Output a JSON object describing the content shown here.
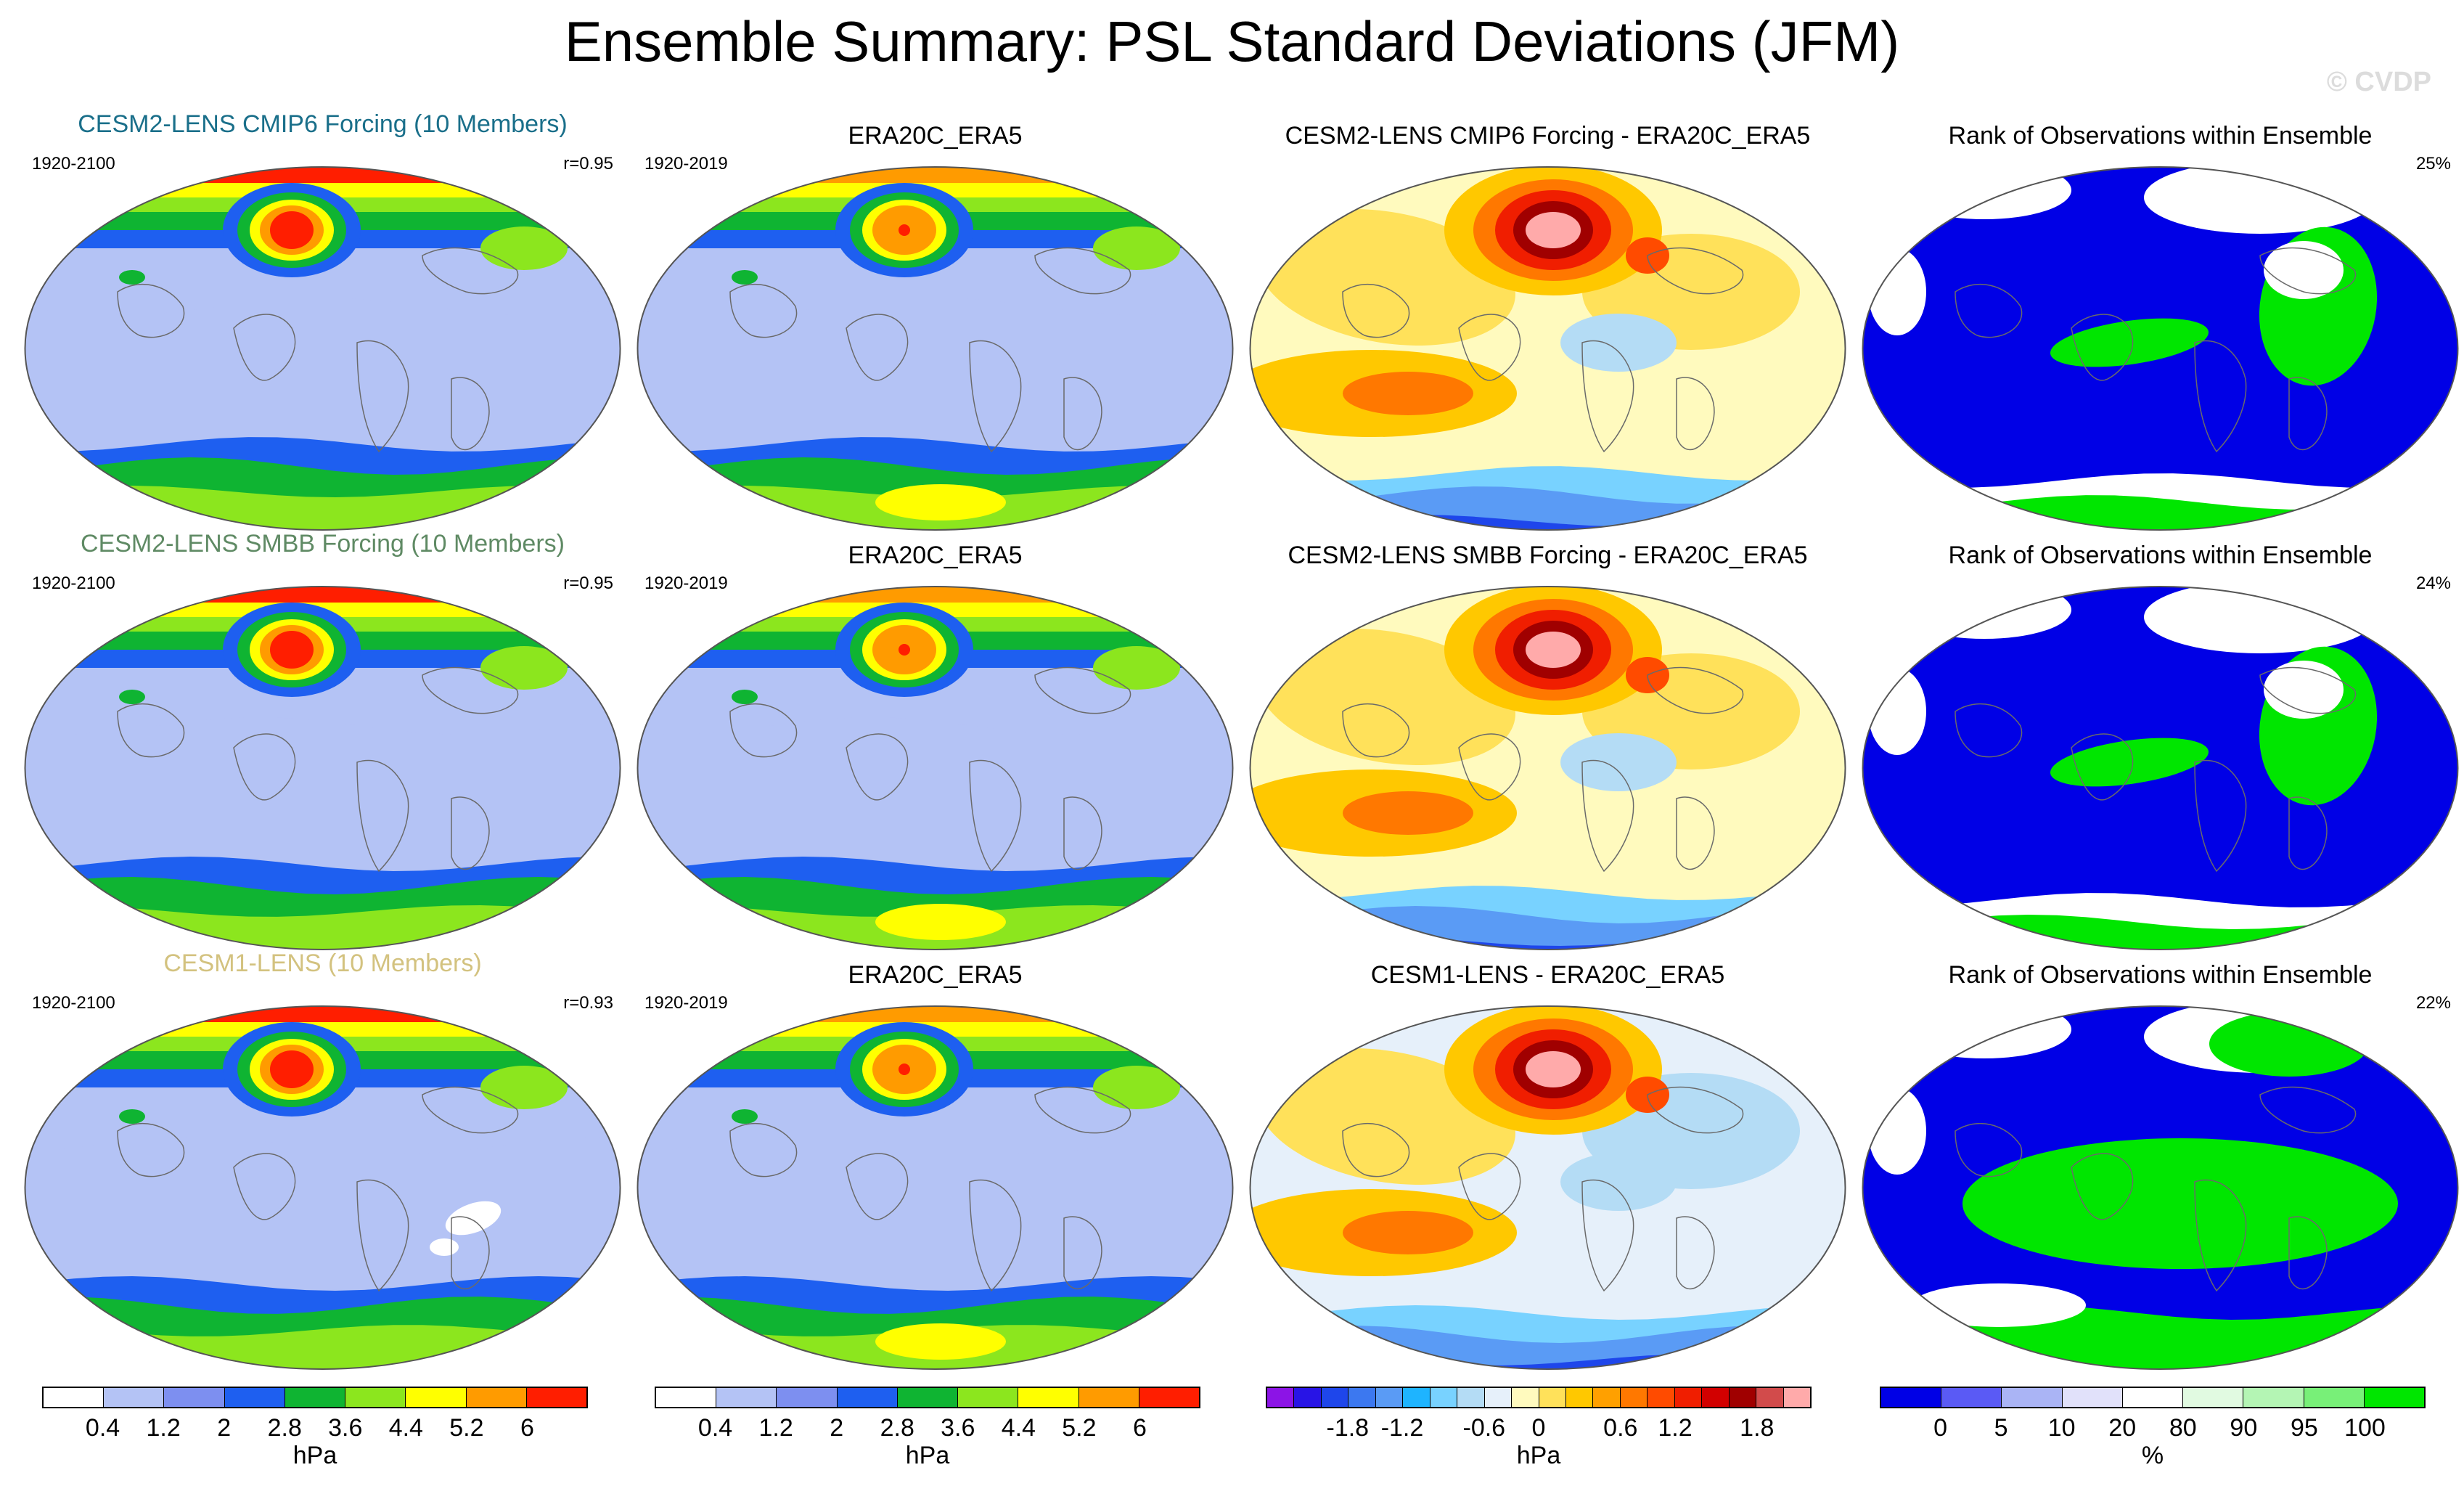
{
  "title": "Ensemble Summary: PSL Standard Deviations (JFM)",
  "watermark": "© CVDP",
  "rows": [
    {
      "model": {
        "title": "CESM2-LENS CMIP6 Forcing (10 Members)",
        "title_color": "#1a6f8a",
        "years": "1920-2100",
        "r": "r=0.95",
        "variant": 0
      },
      "obs": {
        "title": "ERA20C_ERA5",
        "years": "1920-2019",
        "variant": 0
      },
      "diff": {
        "title": "CESM2-LENS CMIP6 Forcing - ERA20C_ERA5",
        "variant": 0
      },
      "rank": {
        "title": "Rank of Observations within Ensemble",
        "pct": "25%",
        "variant": 0
      }
    },
    {
      "model": {
        "title": "CESM2-LENS SMBB Forcing (10 Members)",
        "title_color": "#5f8a64",
        "years": "1920-2100",
        "r": "r=0.95",
        "variant": 1
      },
      "obs": {
        "title": "ERA20C_ERA5",
        "years": "1920-2019",
        "variant": 1
      },
      "diff": {
        "title": "CESM2-LENS SMBB Forcing - ERA20C_ERA5",
        "variant": 1
      },
      "rank": {
        "title": "Rank of Observations within Ensemble",
        "pct": "24%",
        "variant": 1
      }
    },
    {
      "model": {
        "title": "CESM1-LENS (10 Members)",
        "title_color": "#d3c27f",
        "years": "1920-2100",
        "r": "r=0.93",
        "variant": 2
      },
      "obs": {
        "title": "ERA20C_ERA5",
        "years": "1920-2019",
        "variant": 2
      },
      "diff": {
        "title": "CESM1-LENS - ERA20C_ERA5",
        "variant": 2
      },
      "rank": {
        "title": "Rank of Observations within Ensemble",
        "pct": "22%",
        "variant": 2
      }
    }
  ],
  "colorbars": {
    "std": {
      "unit": "hPa",
      "colors": [
        "#ffffff",
        "#b4c3f5",
        "#7d8ff0",
        "#1e5ff0",
        "#0fb432",
        "#8ce61e",
        "#ffff00",
        "#ff9b00",
        "#ff1e00"
      ],
      "ticks": [
        "0.4",
        "1.2",
        "2",
        "2.8",
        "3.6",
        "4.4",
        "5.2",
        "6"
      ]
    },
    "diff": {
      "unit": "hPa",
      "colors": [
        "#8c14e6",
        "#2814e6",
        "#1e46eb",
        "#3c78f0",
        "#5a9bf5",
        "#1eb4ff",
        "#78d2ff",
        "#b4dcf5",
        "#e6f0fa",
        "#fffabe",
        "#ffe15a",
        "#ffc800",
        "#ffa000",
        "#ff7800",
        "#ff4b00",
        "#f01e00",
        "#d20000",
        "#a00000",
        "#d24b4b",
        "#ffaaaa"
      ],
      "ticks": [
        "-1.8",
        "-1.2",
        "-0.6",
        "0",
        "0.6",
        "1.2",
        "1.8"
      ]
    },
    "rank": {
      "unit": "%",
      "colors": [
        "#0000e6",
        "#5a5af5",
        "#aab4f5",
        "#e1e1fa",
        "#ffffff",
        "#e1fae1",
        "#b4f5b4",
        "#78f078",
        "#00e600"
      ],
      "ticks": [
        "0",
        "5",
        "10",
        "20",
        "80",
        "90",
        "95",
        "100"
      ]
    }
  }
}
